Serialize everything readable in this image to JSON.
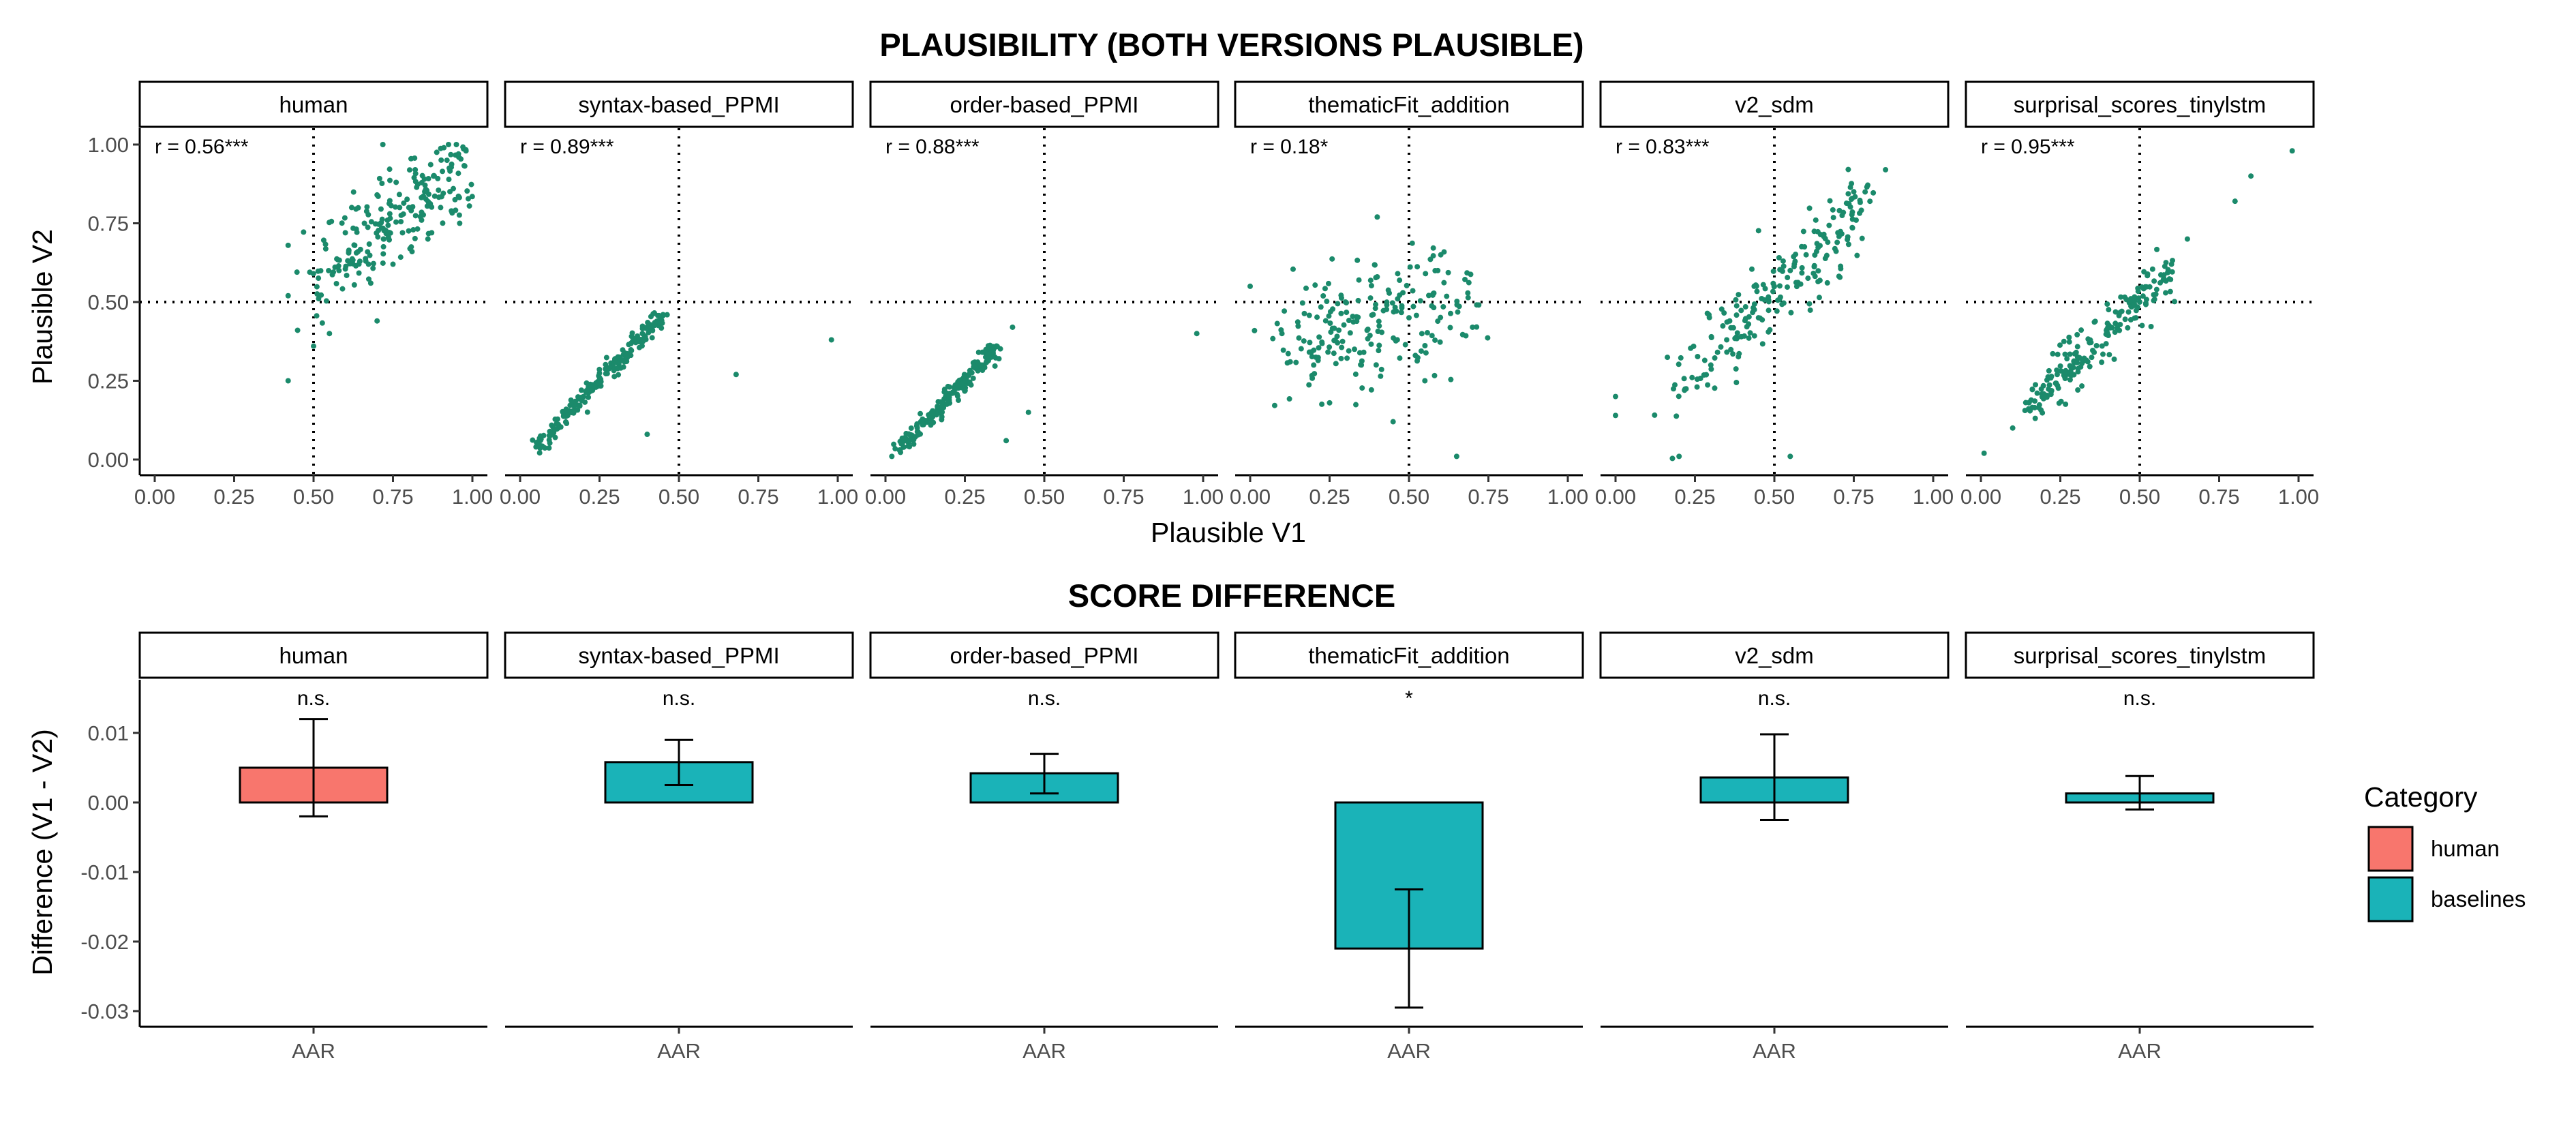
{
  "titles": {
    "top": "PLAUSIBILITY (BOTH VERSIONS PLAUSIBLE)",
    "bottom": "SCORE DIFFERENCE"
  },
  "top_axes": {
    "xlabel": "Plausible V1",
    "ylabel": "Plausible V2"
  },
  "bottom_axes": {
    "ylabel": "Difference (V1 - V2)"
  },
  "legend": {
    "title": "Category",
    "items": [
      {
        "label": "human",
        "color": "#F8766D"
      },
      {
        "label": "baselines",
        "color": "#1AB3B8"
      }
    ]
  },
  "colors": {
    "points": "#1B8A6B",
    "human_bar": "#F8766D",
    "baseline_bar": "#1AB3B8"
  },
  "chart_data": [
    {
      "type": "scatter",
      "title": "PLAUSIBILITY (BOTH VERSIONS PLAUSIBLE)",
      "xlabel": "Plausible V1",
      "ylabel": "Plausible V2",
      "xlim": [
        0,
        1
      ],
      "ylim": [
        0,
        1
      ],
      "x_ticks": [
        "0.00",
        "0.25",
        "0.50",
        "0.75",
        "1.00"
      ],
      "y_ticks": [
        "0.00",
        "0.25",
        "0.50",
        "0.75",
        "1.00"
      ],
      "reference_lines": {
        "x": 0.5,
        "y": 0.5,
        "style": "dotted"
      },
      "panels": [
        {
          "name": "human",
          "r_label": "r = 0.56***",
          "points": [
            [
              0.42,
              0.25
            ],
            [
              0.42,
              0.52
            ],
            [
              0.42,
              0.68
            ],
            [
              0.5,
              0.36
            ],
            [
              0.55,
              0.4
            ],
            [
              0.58,
              0.6
            ],
            [
              0.6,
              0.72
            ],
            [
              0.62,
              0.8
            ],
            [
              0.64,
              0.66
            ],
            [
              0.66,
              0.75
            ],
            [
              0.68,
              0.56
            ],
            [
              0.7,
              0.44
            ],
            [
              0.7,
              0.84
            ],
            [
              0.72,
              0.7
            ],
            [
              0.74,
              0.78
            ],
            [
              0.75,
              0.62
            ],
            [
              0.76,
              0.88
            ],
            [
              0.78,
              0.72
            ],
            [
              0.8,
              0.8
            ],
            [
              0.81,
              0.66
            ],
            [
              0.82,
              0.92
            ],
            [
              0.84,
              0.76
            ],
            [
              0.85,
              0.85
            ],
            [
              0.86,
              0.7
            ],
            [
              0.88,
              0.9
            ],
            [
              0.9,
              0.8
            ],
            [
              0.92,
              0.95
            ],
            [
              0.94,
              0.86
            ],
            [
              0.96,
              0.75
            ],
            [
              0.98,
              0.98
            ]
          ],
          "trend": {
            "x0": 0.5,
            "y0": 0.58,
            "x1": 0.98,
            "y1": 0.92,
            "spread": 0.07
          }
        },
        {
          "name": "syntax-based_PPMI",
          "r_label": "r = 0.89***",
          "points": [
            [
              0.05,
              0.04
            ],
            [
              0.1,
              0.08
            ],
            [
              0.15,
              0.14
            ],
            [
              0.2,
              0.2
            ],
            [
              0.25,
              0.26
            ],
            [
              0.3,
              0.32
            ],
            [
              0.35,
              0.37
            ],
            [
              0.4,
              0.42
            ],
            [
              0.45,
              0.46
            ],
            [
              0.4,
              0.08
            ],
            [
              0.68,
              0.27
            ],
            [
              0.98,
              0.38
            ]
          ],
          "trend": {
            "x0": 0.05,
            "y0": 0.04,
            "x1": 0.45,
            "y1": 0.46,
            "spread": 0.015
          }
        },
        {
          "name": "order-based_PPMI",
          "r_label": "r = 0.88***",
          "points": [
            [
              0.02,
              0.01
            ],
            [
              0.05,
              0.05
            ],
            [
              0.1,
              0.1
            ],
            [
              0.15,
              0.15
            ],
            [
              0.2,
              0.2
            ],
            [
              0.25,
              0.25
            ],
            [
              0.3,
              0.3
            ],
            [
              0.35,
              0.36
            ],
            [
              0.4,
              0.42
            ],
            [
              0.45,
              0.15
            ],
            [
              0.38,
              0.06
            ],
            [
              0.98,
              0.4
            ]
          ],
          "trend": {
            "x0": 0.04,
            "y0": 0.03,
            "x1": 0.35,
            "y1": 0.36,
            "spread": 0.015
          }
        },
        {
          "name": "thematicFit_addition",
          "r_label": "r = 0.18*",
          "points": [
            [
              0.0,
              0.55
            ],
            [
              0.1,
              0.4
            ],
            [
              0.2,
              0.3
            ],
            [
              0.25,
              0.18
            ],
            [
              0.3,
              0.5
            ],
            [
              0.35,
              0.3
            ],
            [
              0.4,
              0.58
            ],
            [
              0.4,
              0.77
            ],
            [
              0.45,
              0.12
            ],
            [
              0.5,
              0.45
            ],
            [
              0.55,
              0.25
            ],
            [
              0.6,
              0.65
            ],
            [
              0.65,
              0.01
            ],
            [
              0.7,
              0.42
            ]
          ],
          "trend": {
            "x0": 0.12,
            "y0": 0.36,
            "x1": 0.65,
            "y1": 0.5,
            "spread": 0.1
          }
        },
        {
          "name": "v2_sdm",
          "r_label": "r = 0.83***",
          "points": [
            [
              0.0,
              0.14
            ],
            [
              0.0,
              0.2
            ],
            [
              0.2,
              0.01
            ],
            [
              0.3,
              0.3
            ],
            [
              0.35,
              0.38
            ],
            [
              0.45,
              0.45
            ],
            [
              0.5,
              0.55
            ],
            [
              0.55,
              0.6
            ],
            [
              0.6,
              0.65
            ],
            [
              0.7,
              0.72
            ],
            [
              0.75,
              0.85
            ],
            [
              0.85,
              0.92
            ],
            [
              0.55,
              0.01
            ]
          ],
          "trend": {
            "x0": 0.2,
            "y0": 0.22,
            "x1": 0.78,
            "y1": 0.82,
            "spread": 0.06
          }
        },
        {
          "name": "surprisal_scores_tinylstm",
          "r_label": "r = 0.95***",
          "points": [
            [
              0.01,
              0.02
            ],
            [
              0.1,
              0.1
            ],
            [
              0.2,
              0.2
            ],
            [
              0.3,
              0.34
            ],
            [
              0.4,
              0.42
            ],
            [
              0.5,
              0.5
            ],
            [
              0.6,
              0.62
            ],
            [
              0.65,
              0.7
            ],
            [
              0.8,
              0.82
            ],
            [
              0.85,
              0.9
            ],
            [
              0.98,
              0.98
            ]
          ],
          "trend": {
            "x0": 0.15,
            "y0": 0.16,
            "x1": 0.6,
            "y1": 0.6,
            "spread": 0.035
          }
        }
      ]
    },
    {
      "type": "bar",
      "title": "SCORE DIFFERENCE",
      "ylabel": "Difference (V1 - V2)",
      "ylim": [
        -0.033,
        0.017
      ],
      "y_ticks": [
        -0.03,
        -0.02,
        -0.01,
        0.0,
        0.01
      ],
      "y_tick_labels": [
        "-0.03",
        "-0.02",
        "-0.01",
        "0.00",
        "0.01"
      ],
      "panels": [
        {
          "name": "human",
          "category": "AAR",
          "group": "human",
          "value": 0.005,
          "err_low": -0.002,
          "err_high": 0.012,
          "sig": "n.s."
        },
        {
          "name": "syntax-based_PPMI",
          "category": "AAR",
          "group": "baselines",
          "value": 0.0058,
          "err_low": 0.0025,
          "err_high": 0.009,
          "sig": "n.s."
        },
        {
          "name": "order-based_PPMI",
          "category": "AAR",
          "group": "baselines",
          "value": 0.0042,
          "err_low": 0.0013,
          "err_high": 0.007,
          "sig": "n.s."
        },
        {
          "name": "thematicFit_addition",
          "category": "AAR",
          "group": "baselines",
          "value": -0.021,
          "err_low": -0.0295,
          "err_high": -0.0125,
          "sig": "*"
        },
        {
          "name": "v2_sdm",
          "category": "AAR",
          "group": "baselines",
          "value": 0.0036,
          "err_low": -0.0025,
          "err_high": 0.0098,
          "sig": "n.s."
        },
        {
          "name": "surprisal_scores_tinylstm",
          "category": "AAR",
          "group": "baselines",
          "value": 0.0013,
          "err_low": -0.001,
          "err_high": 0.0038,
          "sig": "n.s."
        }
      ]
    }
  ]
}
